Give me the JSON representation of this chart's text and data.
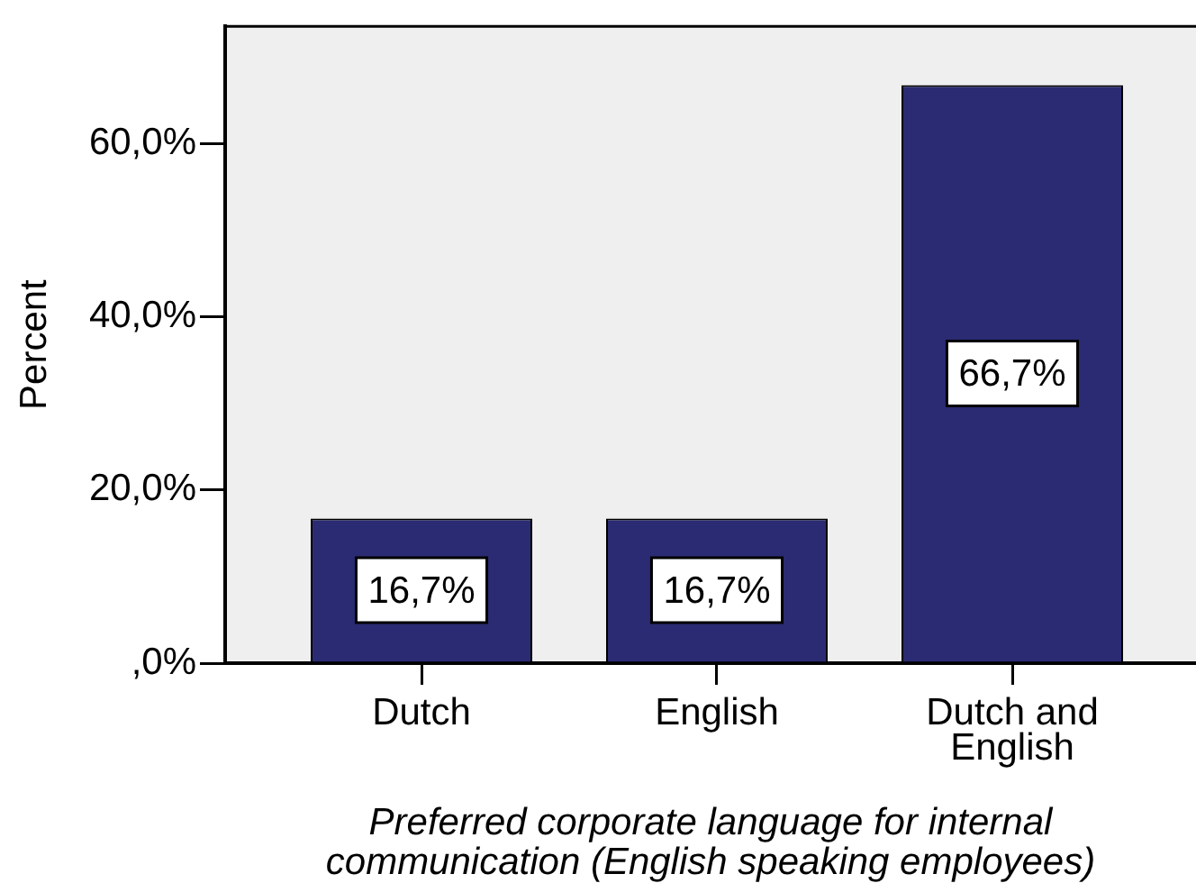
{
  "chart_data": {
    "type": "bar",
    "xlabel": "Preferred corporate language for internal communication (English speaking employees)",
    "ylabel": "Percent",
    "categories": [
      "Dutch",
      "English",
      "Dutch and English"
    ],
    "values": [
      16.7,
      16.7,
      66.7
    ],
    "color": "#2b2b73",
    "ylim": [
      0,
      73.5
    ],
    "yticks": [
      {
        "value": 0,
        "label": ",0%"
      },
      {
        "value": 20,
        "label": "20,0%"
      },
      {
        "value": 40,
        "label": "40,0%"
      },
      {
        "value": 60,
        "label": "60,0%"
      }
    ],
    "value_labels": [
      "16,7%",
      "16,7%",
      "66,7%"
    ],
    "grid": false,
    "legend": false
  }
}
